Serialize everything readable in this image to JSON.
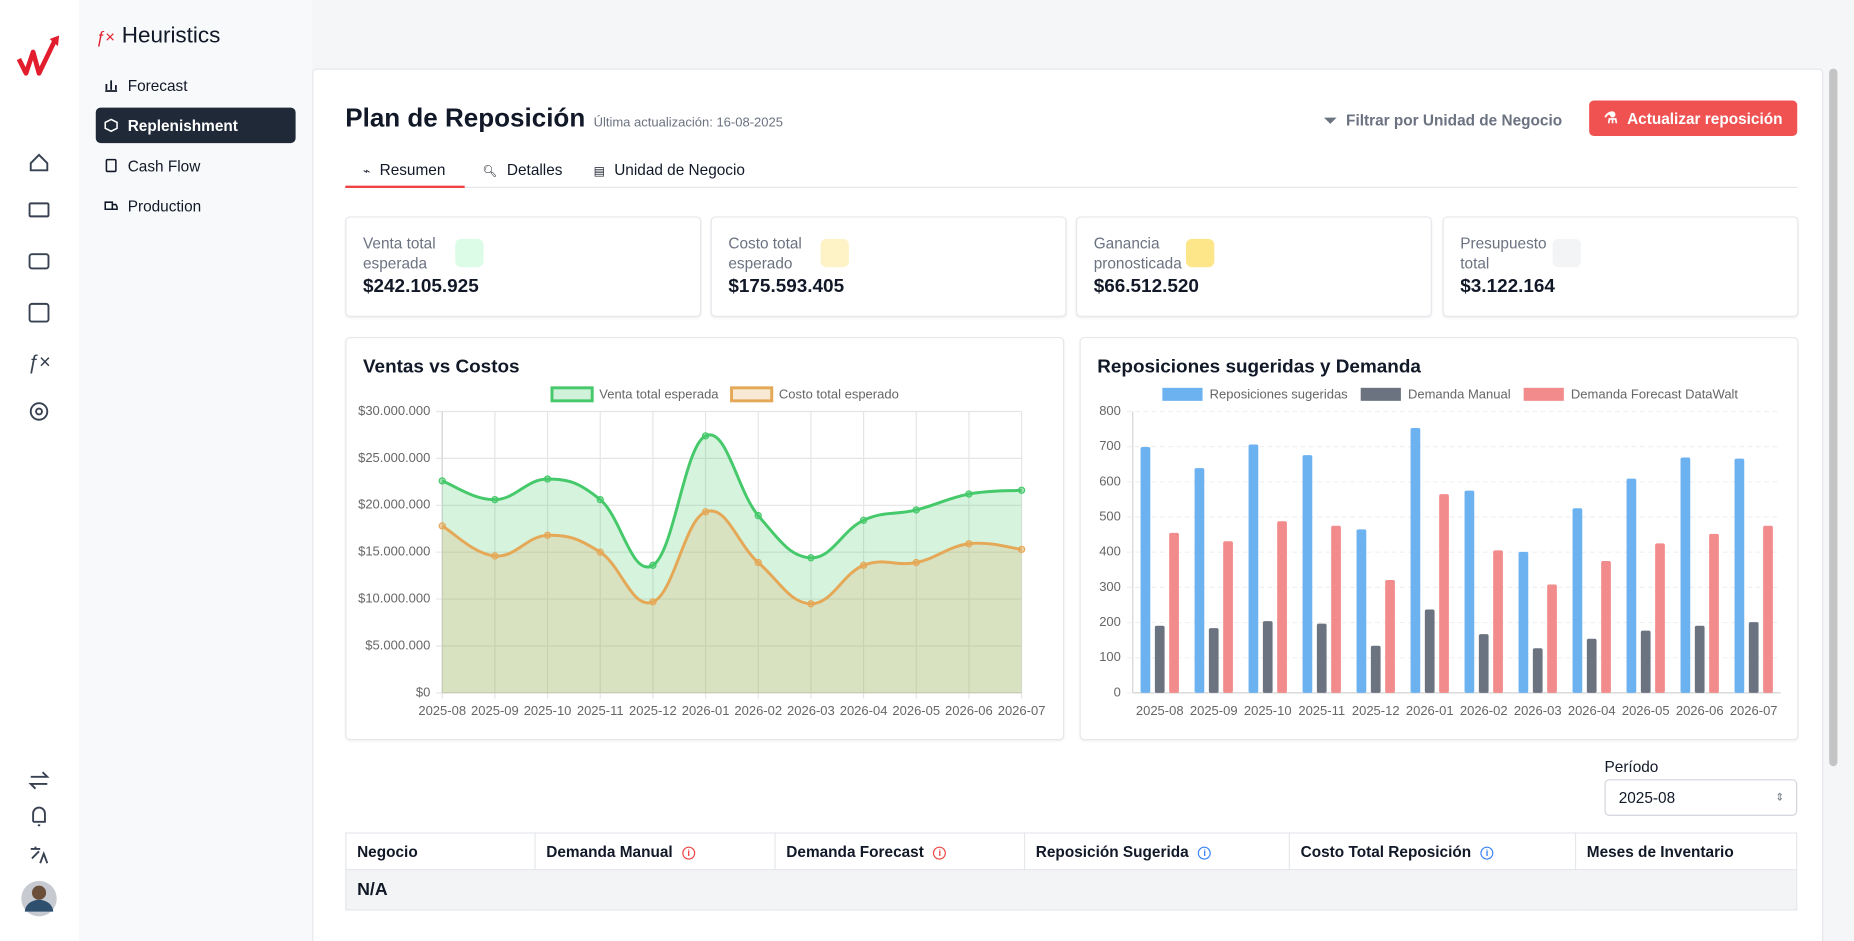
{
  "app": {
    "title": "Heuristics"
  },
  "nav": [
    "Forecast",
    "Replenishment",
    "Cash Flow",
    "Production"
  ],
  "header": {
    "title": "Plan de Reposición",
    "updated": "Última actualización: 16-08-2025",
    "filter": "Filtrar por Unidad de Negocio",
    "action": "Actualizar reposición"
  },
  "tabs": [
    "Resumen",
    "Detalles",
    "Unidad de Negocio"
  ],
  "kpis": [
    {
      "label": "Venta total esperada",
      "value": "$242.105.925"
    },
    {
      "label": "Costo total esperado",
      "value": "$175.593.405"
    },
    {
      "label": "Ganancia pronosticada",
      "value": "$66.512.520"
    },
    {
      "label": "Presupuesto total",
      "value": "$3.122.164"
    }
  ],
  "chart_data": [
    {
      "type": "area",
      "title": "Ventas vs Costos",
      "categories": [
        "2025-08",
        "2025-09",
        "2025-10",
        "2025-11",
        "2025-12",
        "2026-01",
        "2026-02",
        "2026-03",
        "2026-04",
        "2026-05",
        "2026-06",
        "2026-07"
      ],
      "series": [
        {
          "name": "Venta total esperada",
          "color": "#45c96a",
          "values": [
            22600000,
            20600000,
            22800000,
            20600000,
            13600000,
            27400000,
            18900000,
            14400000,
            18400000,
            19500000,
            21200000,
            21600000
          ]
        },
        {
          "name": "Costo total esperado",
          "color": "#e5a857",
          "values": [
            17800000,
            14600000,
            16800000,
            15000000,
            9700000,
            19300000,
            13900000,
            9500000,
            13600000,
            13900000,
            15900000,
            15300000
          ]
        }
      ],
      "ylim": [
        0,
        30000000
      ],
      "yticks": [
        {
          "value": 0,
          "label": "$0"
        },
        {
          "value": 5000000,
          "label": "$5.000.000"
        },
        {
          "value": 10000000,
          "label": "$10.000.000"
        },
        {
          "value": 15000000,
          "label": "$15.000.000"
        },
        {
          "value": 20000000,
          "label": "$20.000.000"
        },
        {
          "value": 25000000,
          "label": "$25.000.000"
        },
        {
          "value": 30000000,
          "label": "$30.000.000"
        }
      ],
      "grid": true
    },
    {
      "type": "bar",
      "title": "Reposiciones sugeridas y Demanda",
      "categories": [
        "2025-08",
        "2025-09",
        "2025-10",
        "2025-11",
        "2025-12",
        "2026-01",
        "2026-02",
        "2026-03",
        "2026-04",
        "2026-05",
        "2026-06",
        "2026-07"
      ],
      "series": [
        {
          "name": "Reposiciones sugeridas",
          "color": "#6cb2f0",
          "values": [
            699,
            639,
            706,
            676,
            465,
            753,
            575,
            401,
            525,
            609,
            669,
            666
          ]
        },
        {
          "name": "Demanda Manual",
          "color": "#6b7280",
          "values": [
            191,
            184,
            204,
            197,
            134,
            237,
            167,
            127,
            154,
            177,
            191,
            201
          ]
        },
        {
          "name": "Demanda Forecast DataWalt",
          "color": "#f28b8b",
          "values": [
            455,
            431,
            488,
            475,
            321,
            565,
            405,
            308,
            375,
            425,
            452,
            475
          ]
        }
      ],
      "ylim": [
        0,
        800
      ],
      "yticks": [
        0,
        100,
        200,
        300,
        400,
        500,
        600,
        700,
        800
      ],
      "grid": true
    }
  ],
  "period": {
    "label": "Período",
    "value": "2025-08"
  },
  "table": {
    "columns": [
      "Negocio",
      "Demanda Manual",
      "Demanda Forecast",
      "Reposición Sugerida",
      "Costo Total Reposición",
      "Meses de Inventario"
    ],
    "group": "N/A"
  }
}
